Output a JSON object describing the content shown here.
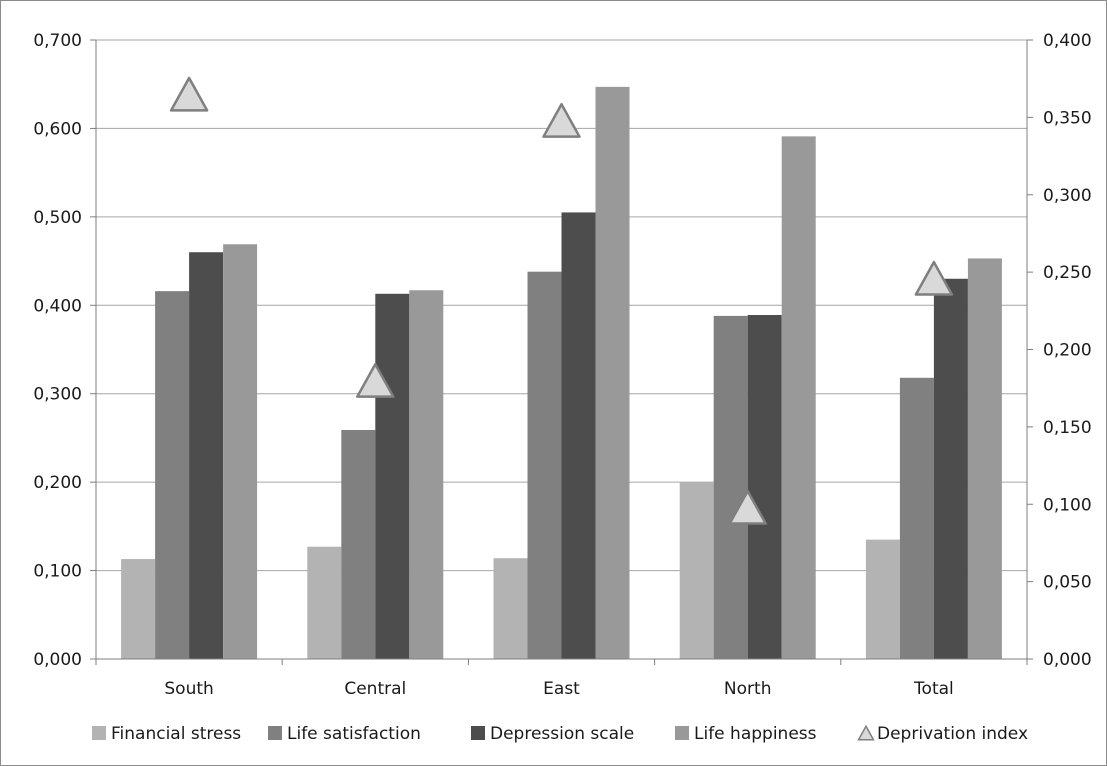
{
  "chart_data": {
    "type": "bar",
    "categories": [
      "South",
      "Central",
      "East",
      "North",
      "Total"
    ],
    "series": [
      {
        "name": "Financial stress",
        "axis": "left",
        "color": "#b3b3b3",
        "values": [
          0.113,
          0.127,
          0.114,
          0.2,
          0.135
        ]
      },
      {
        "name": "Life satisfaction",
        "axis": "left",
        "color": "#808080",
        "values": [
          0.416,
          0.259,
          0.438,
          0.388,
          0.318
        ]
      },
      {
        "name": "Depression scale",
        "axis": "left",
        "color": "#4d4d4d",
        "values": [
          0.46,
          0.413,
          0.505,
          0.389,
          0.43
        ]
      },
      {
        "name": "Life happiness",
        "axis": "left",
        "color": "#999999",
        "values": [
          0.469,
          0.417,
          0.647,
          0.591,
          0.453
        ]
      }
    ],
    "markers": {
      "name": "Deprivation index",
      "type": "triangle",
      "axis": "right",
      "fill": "#d9d9d9",
      "stroke": "#7f7f7f",
      "values": [
        0.365,
        0.18,
        0.348,
        0.098,
        0.246
      ]
    },
    "y_left": {
      "ylim": [
        0,
        0.7
      ],
      "ticks": [
        "0,000",
        "0,100",
        "0,200",
        "0,300",
        "0,400",
        "0,500",
        "0,600",
        "0,700"
      ]
    },
    "y_right": {
      "ylim": [
        0,
        0.4
      ],
      "ticks": [
        "0,000",
        "0,050",
        "0,100",
        "0,150",
        "0,200",
        "0,250",
        "0,300",
        "0,350",
        "0,400"
      ]
    },
    "gridlines": "horizontal",
    "grid_color": "#a6a6a6",
    "axis_color": "#7f7f7f",
    "legend_position": "bottom",
    "legend": [
      "Financial stress",
      "Life satisfaction",
      "Depression scale",
      "Life happiness",
      "Deprivation index"
    ]
  }
}
